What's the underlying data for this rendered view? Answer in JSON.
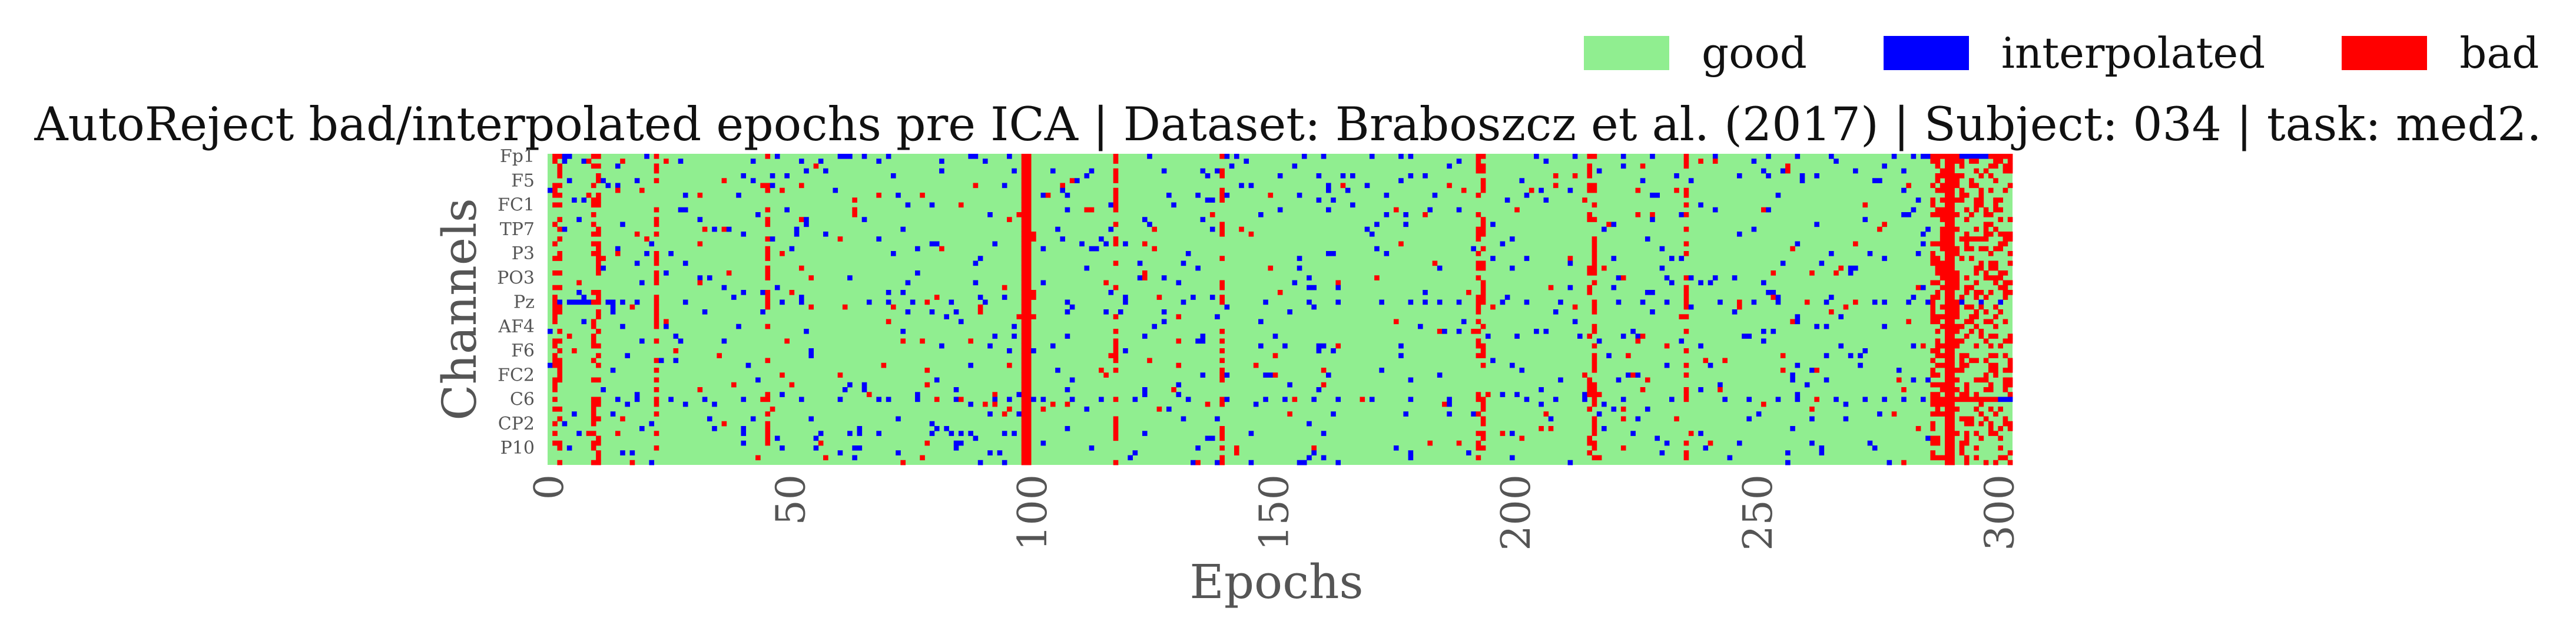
{
  "chart_data": {
    "type": "heatmap",
    "title": "AutoReject bad/interpolated epochs pre ICA | Dataset: Braboszcz et al. (2017) | Subject: 034 | task: med2.",
    "xlabel": "Epochs",
    "ylabel": "Channels",
    "xlim": [
      0,
      303
    ],
    "x_ticks": [
      0,
      50,
      100,
      150,
      200,
      250,
      300
    ],
    "y_tick_labels": [
      "Fp1",
      "F5",
      "FC1",
      "TP7",
      "P3",
      "PO3",
      "Pz",
      "AF4",
      "F6",
      "FC2",
      "C6",
      "CP2",
      "P10"
    ],
    "n_channels": 64,
    "legend": [
      {
        "label": "good",
        "color": "#90EE90",
        "code": 0
      },
      {
        "label": "interpolated",
        "color": "#0000FF",
        "code": 1
      },
      {
        "label": "bad",
        "color": "#FF0000",
        "code": 2
      }
    ],
    "legend_position": "top-right",
    "grid": false,
    "bad_epochs": [
      1,
      2,
      9,
      10,
      22,
      45,
      98,
      99,
      117,
      139,
      192,
      193,
      215,
      216,
      235,
      286,
      287,
      288,
      289,
      290,
      291
    ],
    "full_bad_epochs": [
      98,
      99,
      289,
      290
    ],
    "channel_epoch_status": {
      "Fp1": {
        "interpolated": [
          3,
          4,
          20,
          47,
          60,
          61,
          62,
          65,
          70,
          87,
          88,
          95,
          124,
          140,
          142,
          156,
          160,
          170,
          176,
          178,
          204,
          212,
          222,
          228,
          241,
          252,
          258,
          265,
          278,
          282,
          284,
          285,
          292,
          293,
          294,
          295,
          296,
          297
        ],
        "bad": [
          1,
          2,
          9,
          10,
          22,
          45,
          98,
          99,
          117,
          139,
          192,
          193,
          215,
          216,
          235,
          286,
          287,
          288,
          289,
          290,
          291,
          298,
          299,
          300,
          301,
          302
        ]
      },
      "Pz": {
        "interpolated": [
          2,
          4,
          5,
          6,
          7,
          8,
          12,
          13,
          15,
          18,
          28,
          48,
          52,
          66,
          70,
          75,
          83,
          90,
          107,
          119,
          131,
          148,
          157,
          163,
          172,
          178,
          181,
          184,
          188,
          197,
          202,
          209,
          221,
          226,
          231,
          242,
          246,
          249,
          254,
          264,
          270,
          274,
          276,
          281,
          285,
          292,
          296,
          300
        ],
        "bad": [
          1,
          9,
          10,
          22,
          45,
          78,
          98,
          99,
          139,
          192,
          193,
          216,
          235,
          246,
          260,
          270,
          286,
          289,
          290,
          291
        ]
      },
      "C6": {
        "interpolated": [
          10,
          14,
          18,
          25,
          32,
          40,
          52,
          60,
          68,
          70,
          76,
          84,
          92,
          95,
          100,
          102,
          108,
          114,
          121,
          132,
          140,
          148,
          152,
          158,
          163,
          170,
          178,
          186,
          202,
          208,
          214,
          222,
          232,
          243,
          248,
          254,
          258,
          262,
          266,
          272,
          276,
          280,
          284,
          295,
          300,
          301,
          302
        ],
        "bad": [
          1,
          9,
          10,
          22,
          44,
          45,
          80,
          85,
          98,
          99,
          117,
          139,
          154,
          168,
          192,
          193,
          216,
          235,
          262,
          286,
          287,
          288,
          289,
          290,
          291,
          292,
          293,
          294,
          295,
          296,
          297,
          298,
          299
        ]
      }
    }
  },
  "axis_labels": {
    "x": "Epochs",
    "y": "Channels"
  }
}
